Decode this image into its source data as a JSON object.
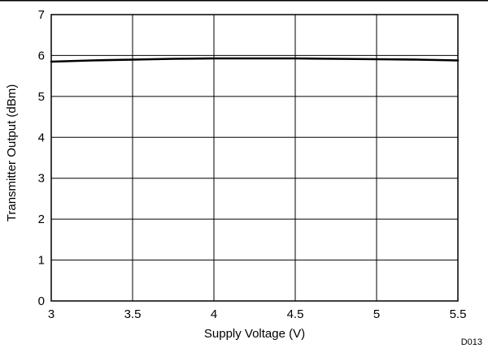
{
  "chart_data": {
    "type": "line",
    "title": "",
    "xlabel": "Supply Voltage (V)",
    "ylabel": "Transmitter Output (dBm)",
    "xlim": [
      3,
      5.5
    ],
    "ylim": [
      0,
      7
    ],
    "x_ticks": [
      "3",
      "3.5",
      "4",
      "4.5",
      "5",
      "5.5"
    ],
    "y_ticks": [
      "0",
      "1",
      "2",
      "3",
      "4",
      "5",
      "6",
      "7"
    ],
    "grid": true,
    "legend": "none",
    "figure_id": "D013",
    "series": [
      {
        "x": [
          3.0,
          3.25,
          3.5,
          3.75,
          4.0,
          4.25,
          4.5,
          4.75,
          5.0,
          5.25,
          5.5
        ],
        "y": [
          5.85,
          5.88,
          5.9,
          5.92,
          5.93,
          5.93,
          5.93,
          5.92,
          5.91,
          5.9,
          5.88
        ]
      }
    ]
  }
}
